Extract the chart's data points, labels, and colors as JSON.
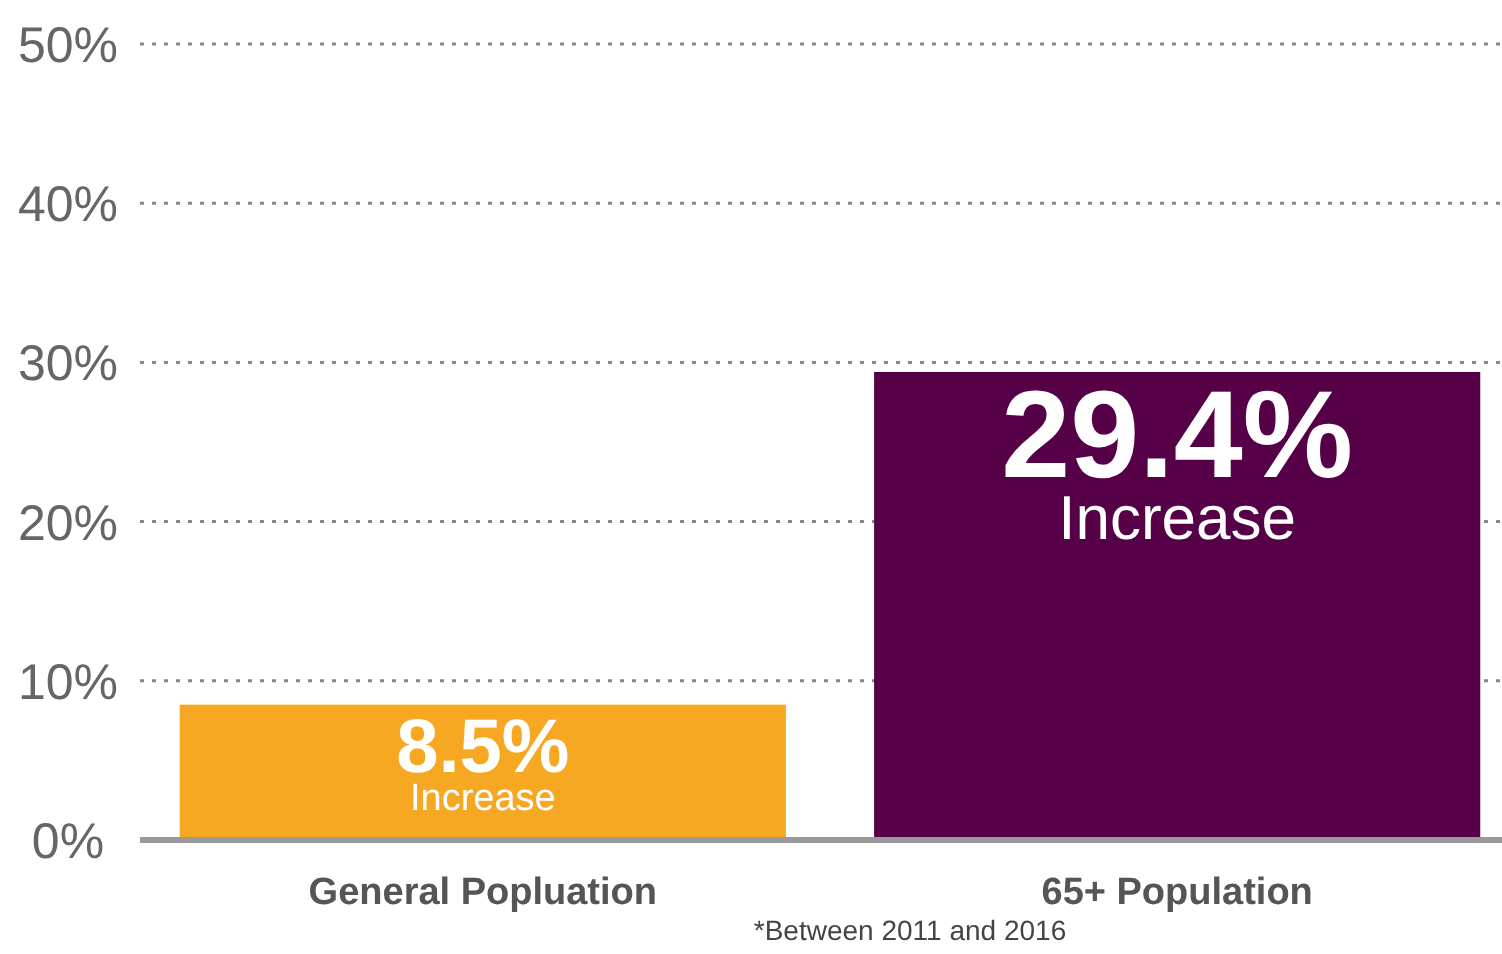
{
  "chart_data": {
    "type": "bar",
    "categories": [
      "General Popluation",
      "65+ Population"
    ],
    "values": [
      8.5,
      29.4
    ],
    "colors": [
      "#f7a823",
      "#560047"
    ],
    "value_labels": [
      "8.5%",
      "29.4%"
    ],
    "ylim": [
      0,
      50
    ],
    "yticks": [
      {
        "value": 0,
        "label": "0%"
      },
      {
        "value": 10,
        "label": "10%"
      },
      {
        "value": 20,
        "label": "20%"
      },
      {
        "value": 30,
        "label": "30%"
      },
      {
        "value": 40,
        "label": "40%"
      },
      {
        "value": 50,
        "label": "50%"
      }
    ],
    "grid": "y",
    "annotations": [
      {
        "text": "Increase",
        "x": "General Popluation",
        "y": 8.5
      },
      {
        "text": "Increase",
        "x": "65+ Population",
        "y": 29.4
      },
      "*Between 2011 and 2016"
    ]
  }
}
